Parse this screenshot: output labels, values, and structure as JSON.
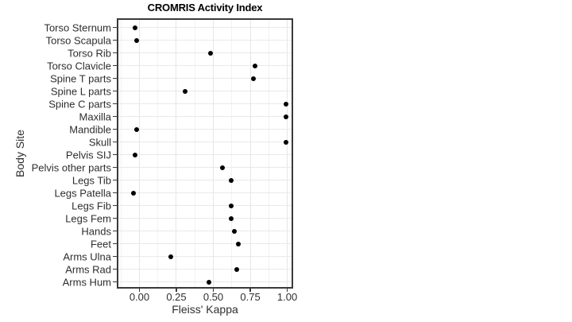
{
  "chart_data": {
    "type": "scatter",
    "subtype": "horizontal-dot-plot",
    "title": "CROMRIS Activity Index",
    "xlabel": "Fleiss' Kappa",
    "ylabel": "Body Site",
    "categories": [
      "Torso Sternum",
      "Torso Scapula",
      "Torso Rib",
      "Torso Clavicle",
      "Spine T parts",
      "Spine L parts",
      "Spine C parts",
      "Maxilla",
      "Mandible",
      "Skull",
      "Pelvis SIJ",
      "Pelvis other parts",
      "Legs Tib",
      "Legs Patella",
      "Legs Fib",
      "Legs Fem",
      "Hands",
      "Feet",
      "Arms Ulna",
      "Arms Rad",
      "Arms Hum"
    ],
    "values": [
      -0.03,
      -0.02,
      0.48,
      0.78,
      0.77,
      0.31,
      0.99,
      0.99,
      -0.02,
      0.99,
      -0.03,
      0.56,
      0.62,
      -0.04,
      0.62,
      0.62,
      0.64,
      0.67,
      0.21,
      0.66,
      0.47
    ],
    "x_ticks": {
      "values": [
        0,
        0.25,
        0.5,
        0.75,
        1.0
      ],
      "labels": [
        "0.00",
        "0.25",
        "0.50",
        "0.75",
        "1.00"
      ]
    },
    "x_minor_gridlines": [
      -0.125,
      0.125,
      0.375,
      0.625,
      0.875
    ],
    "xlim": [
      -0.153,
      1.04
    ],
    "grid": {
      "major": true,
      "minor": true
    },
    "legend": null,
    "point_color": "#000000",
    "colors": {
      "panel_border": "#3a3a3a",
      "grid_major": "#e6e6e6",
      "grid_minor": "#f2f2f2",
      "tick_mark": "#3a3a3a",
      "tick_text": "#2e2e2e",
      "title_text": "#000000",
      "background": "#ffffff"
    }
  }
}
